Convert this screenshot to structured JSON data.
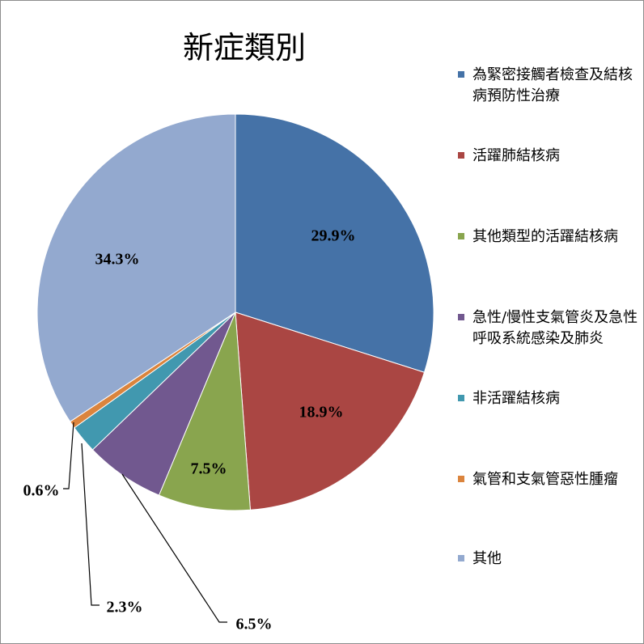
{
  "chart_data": {
    "type": "pie",
    "title": "新症類別",
    "categories": [
      "為緊密接觸者檢查及結核病預防性治療",
      "活躍肺結核病",
      "其他類型的活躍結核病",
      "急性/慢性支氣管炎及急性呼吸系統感染及肺炎",
      "非活躍結核病",
      "氣管和支氣管惡性腫瘤",
      "其他"
    ],
    "values": [
      29.9,
      18.9,
      7.5,
      6.5,
      2.3,
      0.6,
      34.3
    ],
    "labels": [
      "29.9%",
      "18.9%",
      "7.5%",
      "6.5%",
      "2.3%",
      "0.6%",
      "34.3%"
    ],
    "colors": [
      "#4572a7",
      "#aa4643",
      "#89a54e",
      "#71588f",
      "#4198af",
      "#db843d",
      "#93a9cf"
    ],
    "legend_position": "right"
  }
}
